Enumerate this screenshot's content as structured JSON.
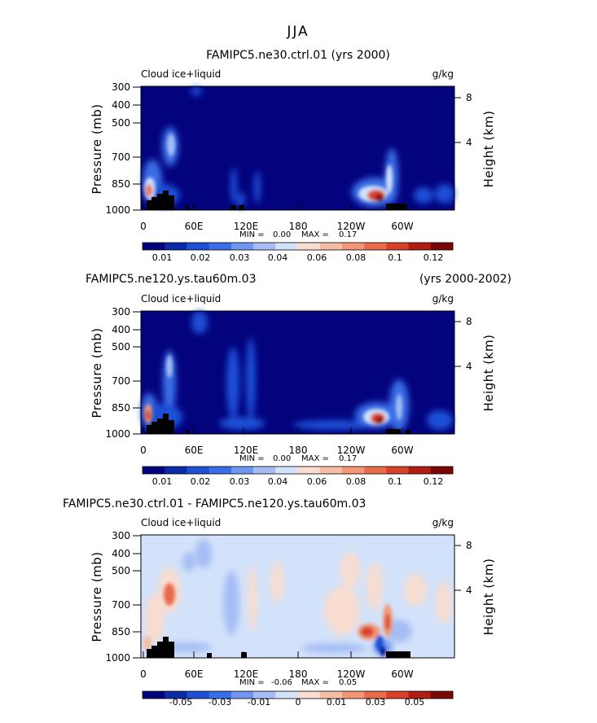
{
  "figure_title": "JJA",
  "chart_data": [
    {
      "type": "heatmap",
      "title_left": "FAMIPC5.ne30.ctrl.01 (yrs 2000)",
      "title_right": "",
      "var_label": "Cloud ice+liquid",
      "units": "g/kg",
      "ylabel": "Pressure (mb)",
      "ylabel_right": "Height (km)",
      "pressure_ticks": [
        "300",
        "400",
        "500",
        "700",
        "850",
        "1000"
      ],
      "height_ticks": [
        "8",
        "4"
      ],
      "lon_ticks": [
        "0",
        "60E",
        "120E",
        "180",
        "120W",
        "60W"
      ],
      "min_label": "MIN =",
      "min_value": "0.00",
      "max_label": "MAX =",
      "max_value": "0.17",
      "colorbar_ticks": [
        "0.01",
        "0.02",
        "0.03",
        "0.04",
        "0.06",
        "0.08",
        "0.1",
        "0.12"
      ],
      "colorbar_colors": [
        "#03037e",
        "#0a2aa8",
        "#1f4fd6",
        "#3a6ee8",
        "#6f97ef",
        "#a5bdf4",
        "#d2e2fa",
        "#f8ddd0",
        "#f6bca4",
        "#f29878",
        "#ea6a4c",
        "#d8402a",
        "#b01e12",
        "#7a0606"
      ]
    },
    {
      "type": "heatmap",
      "title_left": "FAMIPC5.ne120.ys.tau60m.03",
      "title_right": "(yrs 2000-2002)",
      "var_label": "Cloud ice+liquid",
      "units": "g/kg",
      "ylabel": "Pressure (mb)",
      "ylabel_right": "Height (km)",
      "pressure_ticks": [
        "300",
        "400",
        "500",
        "700",
        "850",
        "1000"
      ],
      "height_ticks": [
        "8",
        "4"
      ],
      "lon_ticks": [
        "0",
        "60E",
        "120E",
        "180",
        "120W",
        "60W"
      ],
      "min_label": "MIN =",
      "min_value": "0.00",
      "max_label": "MAX =",
      "max_value": "0.17",
      "colorbar_ticks": [
        "0.01",
        "0.02",
        "0.03",
        "0.04",
        "0.06",
        "0.08",
        "0.1",
        "0.12"
      ],
      "colorbar_colors": [
        "#03037e",
        "#0a2aa8",
        "#1f4fd6",
        "#3a6ee8",
        "#6f97ef",
        "#a5bdf4",
        "#d2e2fa",
        "#f8ddd0",
        "#f6bca4",
        "#f29878",
        "#ea6a4c",
        "#d8402a",
        "#b01e12",
        "#7a0606"
      ]
    },
    {
      "type": "heatmap",
      "title_left": "FAMIPC5.ne30.ctrl.01 - FAMIPC5.ne120.ys.tau60m.03",
      "title_right": "",
      "var_label": "Cloud ice+liquid",
      "units": "g/kg",
      "ylabel": "Pressure (mb)",
      "ylabel_right": "Height (km)",
      "pressure_ticks": [
        "300",
        "400",
        "500",
        "700",
        "850",
        "1000"
      ],
      "height_ticks": [
        "8",
        "4"
      ],
      "lon_ticks": [
        "0",
        "60E",
        "120E",
        "180",
        "120W",
        "60W"
      ],
      "min_label": "MIN =",
      "min_value": "-0.06",
      "max_label": "MAX =",
      "max_value": "0.05",
      "colorbar_ticks": [
        "-0.05",
        "-0.03",
        "-0.01",
        "0",
        "0.01",
        "0.03",
        "0.05"
      ],
      "colorbar_colors": [
        "#03037e",
        "#0a2aa8",
        "#1f4fd6",
        "#3a6ee8",
        "#6f97ef",
        "#a5bdf4",
        "#d2e2fa",
        "#f8ddd0",
        "#f6bca4",
        "#f29878",
        "#ea6a4c",
        "#d8402a",
        "#b01e12",
        "#7a0606"
      ]
    }
  ]
}
